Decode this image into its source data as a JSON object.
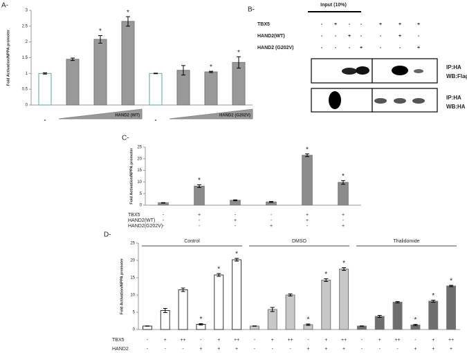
{
  "chart_data": [
    {
      "type": "bar",
      "panel": "A-",
      "y_label": "Fold Activation/NPPA promoter",
      "categories": [
        "-",
        null,
        null,
        null,
        "-",
        null,
        null,
        null
      ],
      "ramp_labels": [
        "HAND2 (WT)",
        "HAND2 (G202V)"
      ],
      "values": [
        1,
        1.45,
        2.08,
        2.65,
        1,
        1.1,
        1.05,
        1.35
      ],
      "errors": [
        0.02,
        0.04,
        0.12,
        0.15,
        0.01,
        0.15,
        0.02,
        0.18
      ],
      "colors": [
        "#ffffff",
        "#999999",
        "#999999",
        "#999999",
        "#ffffff",
        "#999999",
        "#999999",
        "#999999"
      ],
      "significant": [
        false,
        false,
        true,
        true,
        false,
        false,
        true,
        true
      ],
      "marker": "*",
      "ylim": [
        0,
        3
      ],
      "yticks": [
        0,
        0.5,
        1,
        1.5,
        2,
        2.5,
        3
      ]
    },
    {
      "type": "bar",
      "panel": "C-",
      "y_label": "Fold Activation/NPPA promoter",
      "categories": [
        null,
        null,
        null,
        null,
        null,
        null
      ],
      "values": [
        1,
        8.2,
        2.1,
        1.4,
        21.5,
        9.8
      ],
      "errors": [
        0.1,
        0.6,
        0.2,
        0.2,
        0.6,
        0.8
      ],
      "colors": [
        "#8c8c8c",
        "#8c8c8c",
        "#8c8c8c",
        "#8c8c8c",
        "#8c8c8c",
        "#8c8c8c"
      ],
      "significant": [
        false,
        true,
        false,
        false,
        true,
        true
      ],
      "marker": "*",
      "conditions": [
        {
          "name": "TBX5",
          "marks": [
            "-",
            "+",
            "-",
            "-",
            "+",
            "+"
          ]
        },
        {
          "name": "HAND2(WT)",
          "marks": [
            "-",
            "-",
            "+",
            "-",
            "+",
            "-"
          ]
        },
        {
          "name": "HAND2(G202V)",
          "marks": [
            "-",
            "-",
            "-",
            "+",
            "-",
            "+"
          ]
        }
      ],
      "ylim": [
        0,
        25
      ],
      "yticks": [
        0,
        5,
        10,
        15,
        20,
        25
      ]
    },
    {
      "type": "bar",
      "panel": "D-",
      "y_label": "Fold Activation/NPPA promoter",
      "group_labels": [
        "Control",
        "DMSO",
        "Thalidomide"
      ],
      "categories": [
        null,
        null,
        null,
        null,
        null,
        null,
        null,
        null,
        null,
        null,
        null,
        null,
        null,
        null,
        null,
        null,
        null,
        null
      ],
      "values": [
        1,
        5.5,
        11.5,
        1.5,
        15.8,
        20.2,
        1,
        5.8,
        10,
        1.4,
        14.3,
        17.5,
        1,
        3.8,
        7.9,
        1.3,
        8.2,
        12.6
      ],
      "errors": [
        0.05,
        0.6,
        0.5,
        0.2,
        0.4,
        0.4,
        0.05,
        0.6,
        0.3,
        0.2,
        0.4,
        0.4,
        0.05,
        0.3,
        0.2,
        0.2,
        0.3,
        0.2
      ],
      "colors": [
        "#ffffff",
        "#ffffff",
        "#ffffff",
        "#ffffff",
        "#ffffff",
        "#ffffff",
        "#c8c8c8",
        "#c8c8c8",
        "#c8c8c8",
        "#c8c8c8",
        "#c8c8c8",
        "#c8c8c8",
        "#6e6e6e",
        "#6e6e6e",
        "#6e6e6e",
        "#6e6e6e",
        "#6e6e6e",
        "#6e6e6e"
      ],
      "significant": [
        false,
        false,
        false,
        true,
        true,
        true,
        false,
        false,
        false,
        true,
        true,
        true,
        false,
        false,
        false,
        true,
        true,
        true
      ],
      "marker": "*",
      "conditions": [
        {
          "name": "TBX5",
          "marks": [
            "-",
            "+",
            "++",
            "-",
            "+",
            "++",
            "-",
            "+",
            "++",
            "-",
            "+",
            "++",
            "-",
            "+",
            "++",
            "-",
            "+",
            "++"
          ]
        },
        {
          "name": "HAND2",
          "marks": [
            "-",
            "-",
            "-",
            "+",
            "+",
            "+",
            "-",
            "-",
            "-",
            "+",
            "+",
            "+",
            "-",
            "-",
            "-",
            "+",
            "+",
            "+"
          ]
        }
      ],
      "ylim": [
        0,
        25
      ],
      "yticks": [
        0,
        5,
        10,
        15,
        20,
        25
      ]
    }
  ],
  "blot": {
    "panel": "B-",
    "header": "Input (10%)",
    "rows": [
      {
        "name": "TBX5",
        "marks": [
          "-",
          "+",
          "-",
          "-",
          "+",
          "+",
          "+"
        ]
      },
      {
        "name": "HAND2(WT)",
        "marks": [
          "-",
          "-",
          "+",
          "-",
          "-",
          "+",
          "-"
        ]
      },
      {
        "name": "HAND2 (G202V)",
        "marks": [
          "-",
          "-",
          "-",
          "+",
          "-",
          "-",
          "+"
        ]
      }
    ],
    "probes": [
      [
        "IP:HA",
        "WB:Flag"
      ],
      [
        "IP:HA",
        "WB:HA"
      ]
    ]
  }
}
